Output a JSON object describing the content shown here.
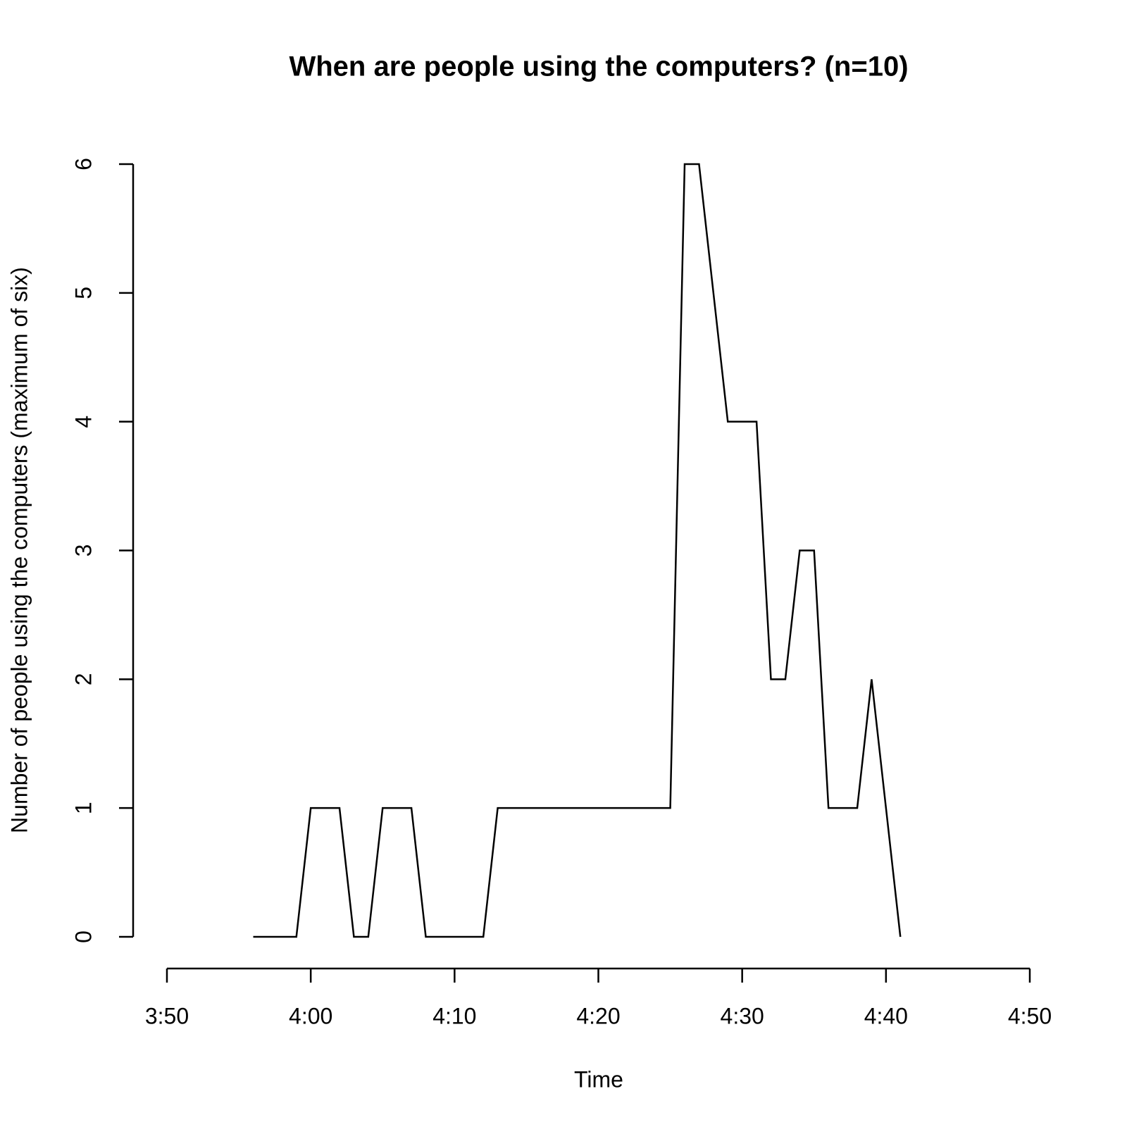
{
  "chart_data": {
    "type": "line",
    "title": "When are people using the computers? (n=10)",
    "xlabel": "Time",
    "ylabel": "Number of people using the computers (maximum of six)",
    "x": [
      "3:56",
      "3:57",
      "3:58",
      "3:59",
      "4:00",
      "4:01",
      "4:02",
      "4:03",
      "4:04",
      "4:05",
      "4:06",
      "4:07",
      "4:08",
      "4:09",
      "4:10",
      "4:11",
      "4:12",
      "4:13",
      "4:14",
      "4:15",
      "4:16",
      "4:17",
      "4:18",
      "4:19",
      "4:20",
      "4:21",
      "4:22",
      "4:23",
      "4:24",
      "4:25",
      "4:26",
      "4:27",
      "4:28",
      "4:29",
      "4:30",
      "4:31",
      "4:32",
      "4:33",
      "4:34",
      "4:35",
      "4:36",
      "4:37",
      "4:38",
      "4:39",
      "4:40",
      "4:41"
    ],
    "series": [
      {
        "color": "#000000",
        "values": [
          0,
          0,
          0,
          0,
          1,
          1,
          1,
          0,
          0,
          1,
          1,
          1,
          0,
          0,
          0,
          0,
          0,
          1,
          1,
          1,
          1,
          1,
          1,
          1,
          1,
          1,
          1,
          1,
          1,
          1,
          6,
          6,
          5,
          4,
          4,
          4,
          2,
          2,
          3,
          3,
          1,
          1,
          1,
          2,
          1,
          0
        ]
      }
    ],
    "xlim": [
      "3:50",
      "4:50"
    ],
    "xticks": [
      "3:50",
      "4:00",
      "4:10",
      "4:20",
      "4:30",
      "4:40",
      "4:50"
    ],
    "ylim": [
      0,
      6
    ],
    "yticks": [
      0,
      1,
      2,
      3,
      4,
      5,
      6
    ]
  }
}
